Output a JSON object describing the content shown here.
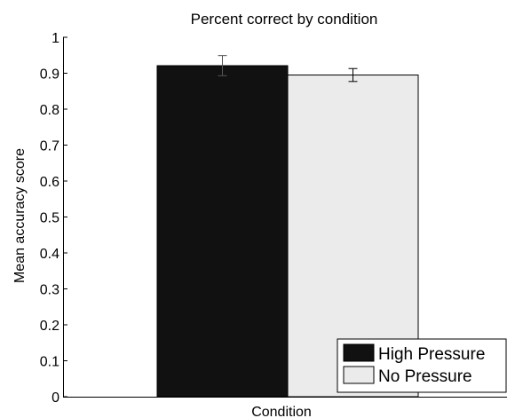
{
  "chart_data": {
    "type": "bar",
    "title": "Percent correct by condition",
    "xlabel": "Condition",
    "ylabel": "Mean accuracy score",
    "ylim": [
      0,
      1
    ],
    "yticks": [
      0,
      0.1,
      0.2,
      0.3,
      0.4,
      0.5,
      0.6,
      0.7,
      0.8,
      0.9,
      1
    ],
    "ytick_labels": [
      "0",
      "0.1",
      "0.2",
      "0.3",
      "0.4",
      "0.5",
      "0.6",
      "0.7",
      "0.8",
      "0.9",
      "1"
    ],
    "categories": [
      ""
    ],
    "series": [
      {
        "name": "High Pressure",
        "values": [
          0.921
        ],
        "error": [
          0.028
        ],
        "color": "#111111"
      },
      {
        "name": "No Pressure",
        "values": [
          0.895
        ],
        "error": [
          0.018
        ],
        "color": "#ebebeb"
      }
    ],
    "legend": {
      "placement": "bottom-right"
    },
    "grid": false
  }
}
